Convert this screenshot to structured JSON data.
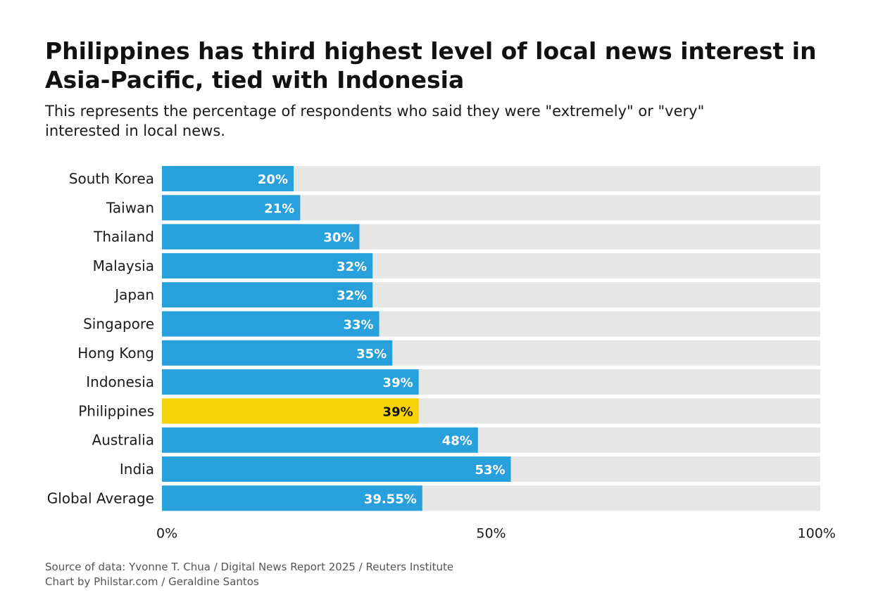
{
  "chart_data": {
    "type": "bar",
    "orientation": "horizontal",
    "title": "Philippines has third highest level of local news interest in Asia-Pacific, tied with Indonesia",
    "subtitle": "This represents the percentage of respondents who said they were \"extremely\" or \"very\" interested in local news.",
    "categories": [
      "South Korea",
      "Taiwan",
      "Thailand",
      "Malaysia",
      "Japan",
      "Singapore",
      "Hong Kong",
      "Indonesia",
      "Philippines",
      "Australia",
      "India",
      "Global Average"
    ],
    "values": [
      20,
      21,
      30,
      32,
      32,
      33,
      35,
      39,
      39,
      48,
      53,
      39.55
    ],
    "value_labels": [
      "20%",
      "21%",
      "30%",
      "32%",
      "32%",
      "33%",
      "35%",
      "39%",
      "39%",
      "48%",
      "53%",
      "39.55%"
    ],
    "highlight_index": 8,
    "xlim": [
      0,
      100
    ],
    "x_ticks": [
      0,
      50,
      100
    ],
    "x_tick_labels": [
      "0%",
      "50%",
      "100%"
    ],
    "grid": false,
    "colors": {
      "bar": "#28a0db",
      "highlight": "#f5d20a",
      "track": "#e6e6e6",
      "label_on_bar": "#ffffff",
      "label_on_highlight": "#111111"
    }
  },
  "footer": {
    "source": "Source of data: Yvonne T. Chua / Digital News Report 2025 / Reuters Institute",
    "credit": "Chart by Philstar.com / Geraldine Santos"
  }
}
